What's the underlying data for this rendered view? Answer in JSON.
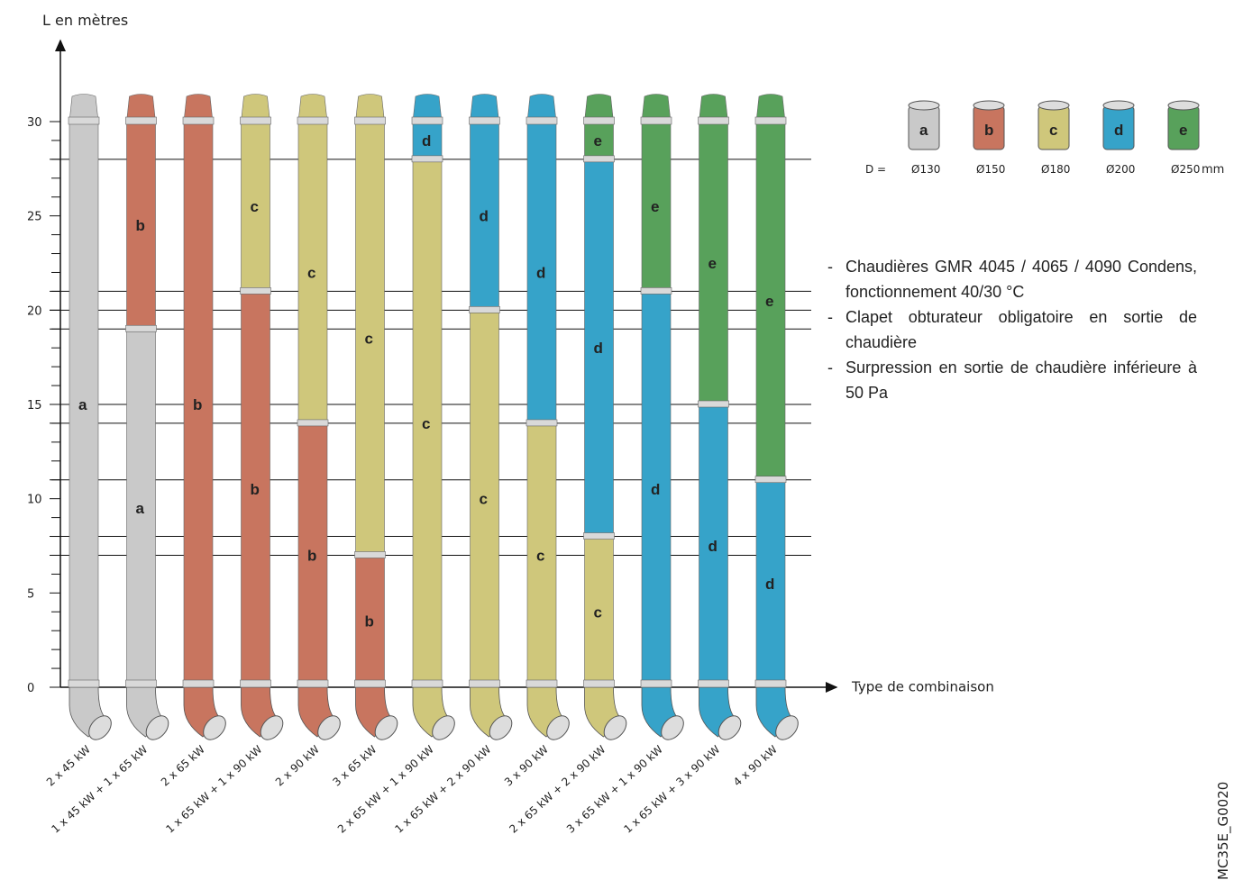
{
  "chart_data": {
    "type": "stacked-bar",
    "y_label": "L en mètres",
    "x_label": "Type de combinaison",
    "categories": [
      "2 x 45 kW",
      "1 x 45 kW + 1 x 65 kW",
      "2 x 65 kW",
      "1 x 65 kW + 1 x 90 kW",
      "2 x 90 kW",
      "3 x 65 kW",
      "2 x 65 kW + 1 x 90 kW",
      "1 x 65 kW + 2 x 90 kW",
      "3 x 90 kW",
      "2 x 65 kW + 2 x 90 kW",
      "3 x 65 kW + 1 x 90 kW",
      "1 x 65 kW + 3 x 90 kW",
      "4 x 90 kW"
    ],
    "series": [
      {
        "name": "a",
        "color": "#c9c9c9",
        "diameter": "Ø130",
        "values": [
          30,
          19,
          null,
          null,
          null,
          null,
          null,
          null,
          null,
          null,
          null,
          null,
          null
        ]
      },
      {
        "name": "b",
        "color": "#c8755f",
        "diameter": "Ø150",
        "values": [
          null,
          11,
          30,
          21,
          14,
          7,
          null,
          null,
          null,
          null,
          null,
          null,
          null
        ]
      },
      {
        "name": "c",
        "color": "#cfc77b",
        "diameter": "Ø180",
        "values": [
          null,
          null,
          null,
          9,
          16,
          23,
          28,
          20,
          14,
          8,
          null,
          null,
          null
        ]
      },
      {
        "name": "d",
        "color": "#36a3c9",
        "diameter": "Ø200",
        "values": [
          null,
          null,
          null,
          null,
          null,
          null,
          2,
          10,
          16,
          20,
          21,
          15,
          11
        ]
      },
      {
        "name": "e",
        "color": "#58a15b",
        "diameter": "Ø250",
        "values": [
          null,
          null,
          null,
          null,
          null,
          null,
          null,
          null,
          null,
          2,
          9,
          15,
          19
        ]
      }
    ],
    "legend_prefix": "D =",
    "legend_unit": "mm",
    "ylim": [
      0,
      30
    ],
    "yticks": [
      0,
      5,
      10,
      15,
      20,
      25,
      30
    ],
    "minor_yticks": [
      1,
      2,
      3,
      4,
      6,
      7,
      8,
      9,
      11,
      12,
      13,
      14,
      16,
      17,
      18,
      19,
      21,
      22,
      23,
      24,
      26,
      27,
      28,
      29
    ],
    "reference_lines": [
      7,
      8,
      11,
      14,
      15,
      19,
      20,
      21,
      28
    ],
    "notes": [
      "Chaudières GMR 4045 / 4065 / 4090 Condens, fonctionnement 40/30 °C",
      "Clapet obturateur obligatoire en sortie de chaudière",
      "Surpression en sortie de chaudière inférieure à 50 Pa"
    ],
    "reference": "MC35E_G0020"
  }
}
